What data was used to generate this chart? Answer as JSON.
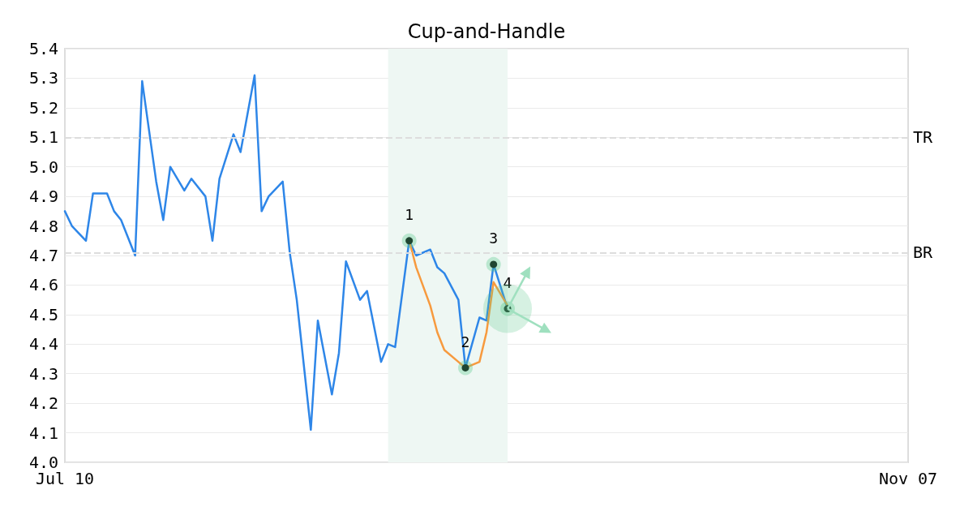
{
  "chart_data": {
    "type": "line",
    "title": "Cup-and-Handle",
    "x": [
      "--07-10",
      "--07-11",
      "--07-13",
      "--07-14",
      "--07-16",
      "--07-17",
      "--07-18",
      "--07-20",
      "--07-21",
      "--07-23",
      "--07-24",
      "--07-25",
      "--07-27",
      "--07-28",
      "--07-30",
      "--07-31",
      "--08-01",
      "--08-03",
      "--08-04",
      "--08-06",
      "--08-07",
      "--08-08",
      "--08-10",
      "--08-11",
      "--08-12",
      "--08-14",
      "--08-15",
      "--08-17",
      "--08-18",
      "--08-19",
      "--08-21",
      "--08-22",
      "--08-24",
      "--08-25",
      "--08-26",
      "--08-28",
      "--08-29",
      "--08-31",
      "--09-01",
      "--09-02",
      "--09-04",
      "--09-05",
      "--09-07",
      "--09-08",
      "--09-09",
      "--09-11"
    ],
    "series": [
      {
        "color": "#2e86e8",
        "values": [
          4.85,
          4.8,
          4.75,
          4.91,
          4.91,
          4.85,
          4.82,
          4.7,
          5.29,
          4.95,
          4.82,
          5.0,
          4.92,
          4.96,
          4.9,
          4.75,
          4.96,
          5.11,
          5.05,
          5.31,
          4.85,
          4.9,
          4.95,
          4.71,
          4.55,
          4.11,
          4.48,
          4.23,
          4.37,
          4.68,
          4.55,
          4.58,
          4.34,
          4.4,
          4.39,
          4.75,
          4.7,
          4.72,
          4.66,
          4.64,
          4.55,
          4.32,
          4.49,
          4.48,
          4.67,
          4.52
        ]
      },
      {
        "color": "#f79a3e",
        "x": [
          "--08-28",
          "--08-29",
          "--08-31",
          "--09-01",
          "--09-02",
          "--09-04",
          "--09-05",
          "--09-07",
          "--09-08",
          "--09-09",
          "--09-11"
        ],
        "values": [
          4.75,
          4.66,
          4.53,
          4.44,
          4.38,
          4.34,
          4.32,
          4.34,
          4.44,
          4.61,
          4.53
        ]
      }
    ],
    "xlim": [
      "--07-10",
      "--11-07"
    ],
    "xticks": [
      {
        "value": "--07-10",
        "label": "Jul 10"
      },
      {
        "value": "--11-07",
        "label": "Nov 07"
      }
    ],
    "ylim": [
      4.0,
      5.4
    ],
    "yticks": [
      {
        "value": 4.0,
        "label": "4.0"
      },
      4.1,
      4.2,
      4.3,
      4.4,
      4.5,
      4.6,
      4.7,
      4.8,
      4.9,
      {
        "value": 5.0,
        "label": "5.0"
      },
      5.1,
      5.2,
      5.3,
      5.4
    ],
    "grid": "y",
    "marker": "none",
    "line_style": "solid",
    "ref_lines": [
      {
        "axis": "y",
        "value": 5.1,
        "label": "TR",
        "color": "#dddddd",
        "line_style": "dashed"
      },
      {
        "axis": "y",
        "value": 4.71,
        "label": "BR",
        "color": "#dddddd",
        "line_style": "dashed"
      }
    ],
    "bands": [
      {
        "axis": "x",
        "from": "--08-25",
        "to": "--09-11",
        "color": "#eef7f3"
      }
    ],
    "annotations": [
      {
        "text": "1",
        "x": "--08-28",
        "y": 4.75
      },
      {
        "text": "2",
        "x": "--09-05",
        "y": 4.32
      },
      {
        "text": "3",
        "x": "--09-09",
        "y": 4.67
      },
      {
        "text": "4",
        "x": "--09-11",
        "y": 4.52
      }
    ]
  }
}
